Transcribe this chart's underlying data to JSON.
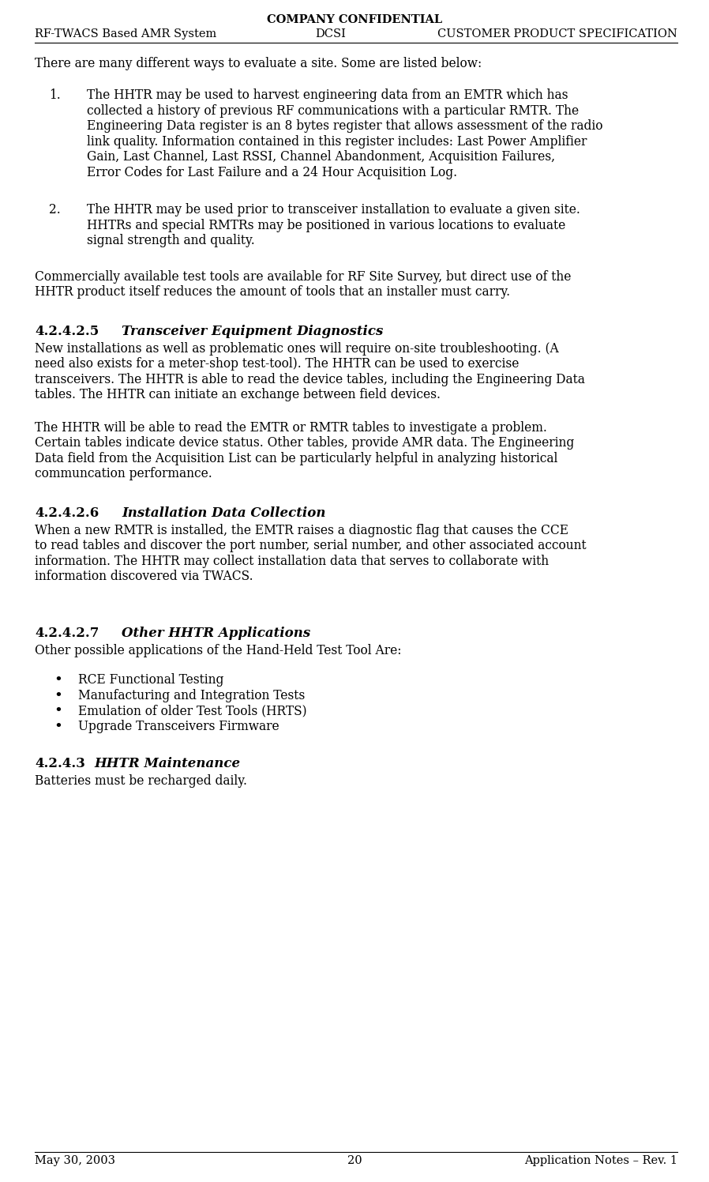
{
  "bg_color": "#ffffff",
  "header_title": "COMPANY CONFIDENTIAL",
  "header_left": "RF-TWACS Based AMR System",
  "header_center": "DCSI",
  "header_right": "CUSTOMER PRODUCT SPECIFICATION",
  "footer_left": "May 30, 2003",
  "footer_center": "20",
  "footer_right": "Application Notes – Rev. 1",
  "intro_text": "There are many different ways to evaluate a site. Some are listed below:",
  "item1_num": "1.",
  "item2_num": "2.",
  "item1_lines": [
    "The HHTR may be used to harvest engineering data from an EMTR which has",
    "collected a history of previous RF communications with a particular RMTR. The",
    "Engineering Data register is an 8 bytes register that allows assessment of the radio",
    "link quality. Information contained in this register includes: Last Power Amplifier",
    "Gain, Last Channel, Last RSSI, Channel Abandonment, Acquisition Failures,",
    "Error Codes for Last Failure and a 24 Hour Acquisition Log."
  ],
  "item2_lines": [
    "The HHTR may be used prior to transceiver installation to evaluate a given site.",
    "HHTRs and special RMTRs may be positioned in various locations to evaluate",
    "signal strength and quality."
  ],
  "para1_lines": [
    "Commercially available test tools are available for RF Site Survey, but direct use of the",
    "HHTR product itself reduces the amount of tools that an installer must carry."
  ],
  "section425_num": "4.2.4.2.5",
  "section425_title": "Transceiver Equipment Diagnostics",
  "section425_p1_lines": [
    "New installations as well as problematic ones will require on-site troubleshooting. (A",
    "need also exists for a meter-shop test-tool). The HHTR can be used to exercise",
    "transceivers. The HHTR is able to read the device tables, including the Engineering Data",
    "tables. The HHTR can initiate an exchange between field devices."
  ],
  "section425_p2_lines": [
    "The HHTR will be able to read the EMTR or RMTR tables to investigate a problem.",
    "Certain tables indicate device status. Other tables, provide AMR data. The Engineering",
    "Data field from the Acquisition List can be particularly helpful in analyzing historical",
    "communcation performance."
  ],
  "section426_num": "4.2.4.2.6",
  "section426_title": "Installation Data Collection",
  "section426_lines": [
    "When a new RMTR is installed, the EMTR raises a diagnostic flag that causes the CCE",
    "to read tables and discover the port number, serial number, and other associated account",
    "information. The HHTR may collect installation data that serves to collaborate with",
    "information discovered via TWACS."
  ],
  "section427_num": "4.2.4.2.7",
  "section427_title": "Other HHTR Applications",
  "section427_intro": "Other possible applications of the Hand-Held Test Tool Are:",
  "bullets": [
    "RCE Functional Testing",
    "Manufacturing and Integration Tests",
    "Emulation of older Test Tools (HRTS)",
    "Upgrade Transceivers Firmware"
  ],
  "section443_num": "4.2.4.3",
  "section443_title": "HHTR Maintenance",
  "section443_para": "Batteries must be recharged daily.",
  "font_family": "DejaVu Serif",
  "body_fontsize": 11.2,
  "header_fontsize": 10.5,
  "section_fontsize": 12.0,
  "footer_fontsize": 10.5
}
